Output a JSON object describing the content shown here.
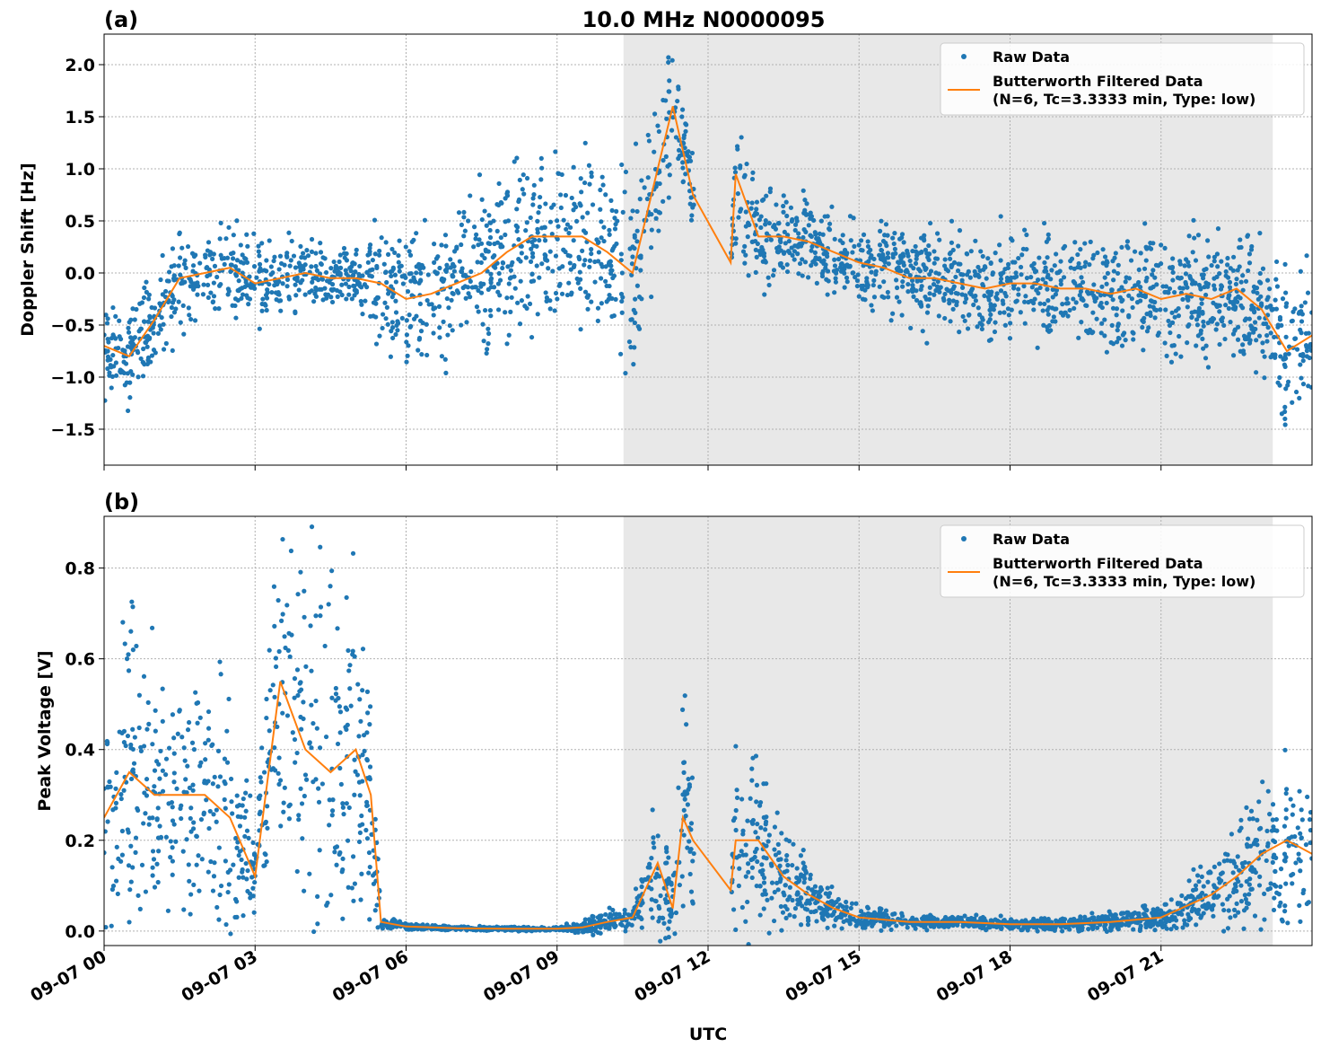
{
  "chart_data": [
    {
      "type": "scatter",
      "panel_label": "(a)",
      "title": "10.0 MHz N0000095",
      "xlabel": "",
      "ylabel": "Doppler Shift [Hz]",
      "xlim_hours": [
        0,
        24
      ],
      "ylim": [
        -1.845,
        2.293
      ],
      "yticks": [
        2.0,
        1.5,
        1.0,
        0.5,
        0.0,
        -0.5,
        -1.0,
        -1.5
      ],
      "ytick_labels": [
        "2.0",
        "1.5",
        "1.0",
        "0.5",
        "0.0",
        "−0.5",
        "−1.0",
        "−1.5"
      ],
      "grid": true,
      "shaded_region_hours": [
        10.32,
        23.22
      ],
      "legend": {
        "placement": "top-right",
        "entries": [
          "Raw Data",
          "Butterworth Filtered Data\n(N=6, Tc=3.3333 min, Type: low)"
        ]
      },
      "colors": {
        "raw": "#1f77b4",
        "filtered": "#ff7f0e",
        "shade": "#e8e8e8"
      },
      "x": [
        0,
        0.5,
        1,
        1.5,
        2,
        2.5,
        3,
        3.5,
        4,
        4.5,
        5,
        5.5,
        6,
        6.5,
        7,
        7.5,
        8,
        8.5,
        9,
        9.5,
        10,
        10.5,
        11,
        11.3,
        11.7,
        12.45,
        12.55,
        13,
        13.5,
        14,
        14.5,
        15,
        15.5,
        16,
        16.5,
        17,
        17.5,
        18,
        18.5,
        19,
        19.5,
        20,
        20.5,
        21,
        21.5,
        22,
        22.5,
        23,
        23.5,
        24
      ],
      "filtered": [
        -0.7,
        -0.8,
        -0.45,
        -0.05,
        0.0,
        0.05,
        -0.1,
        -0.05,
        0.0,
        -0.05,
        -0.05,
        -0.1,
        -0.25,
        -0.2,
        -0.1,
        0.0,
        0.2,
        0.35,
        0.35,
        0.35,
        0.2,
        0.0,
        1.0,
        1.6,
        0.75,
        0.1,
        0.95,
        0.35,
        0.35,
        0.3,
        0.2,
        0.1,
        0.05,
        -0.05,
        -0.05,
        -0.1,
        -0.15,
        -0.1,
        -0.1,
        -0.15,
        -0.15,
        -0.2,
        -0.15,
        -0.25,
        -0.2,
        -0.25,
        -0.15,
        -0.35,
        -0.75,
        -0.6
      ],
      "raw_spread": [
        0.3,
        0.3,
        0.4,
        0.35,
        0.3,
        0.3,
        0.35,
        0.3,
        0.2,
        0.2,
        0.2,
        0.5,
        0.5,
        0.5,
        0.5,
        0.55,
        0.6,
        0.6,
        0.6,
        0.65,
        0.6,
        0.8,
        0.6,
        0.45,
        0.3,
        0,
        0.5,
        0.35,
        0.3,
        0.3,
        0.3,
        0.3,
        0.3,
        0.35,
        0.35,
        0.35,
        0.35,
        0.4,
        0.4,
        0.4,
        0.4,
        0.4,
        0.4,
        0.45,
        0.45,
        0.45,
        0.45,
        0.5,
        0.6,
        0.5
      ]
    },
    {
      "type": "scatter",
      "panel_label": "(b)",
      "title": "",
      "xlabel": "UTC",
      "ylabel": "Peak Voltage [V]",
      "xlim_hours": [
        0,
        24
      ],
      "ylim": [
        -0.032,
        0.914
      ],
      "yticks": [
        0.0,
        0.2,
        0.4,
        0.6,
        0.8
      ],
      "ytick_labels": [
        "0.0",
        "0.2",
        "0.4",
        "0.6",
        "0.8"
      ],
      "xticks_hours": [
        0,
        3,
        6,
        9,
        12,
        15,
        18,
        21
      ],
      "xtick_labels": [
        "09-07 00",
        "09-07 03",
        "09-07 06",
        "09-07 09",
        "09-07 12",
        "09-07 15",
        "09-07 18",
        "09-07 21"
      ],
      "grid": true,
      "shaded_region_hours": [
        10.32,
        23.22
      ],
      "legend": {
        "placement": "top-right",
        "entries": [
          "Raw Data",
          "Butterworth Filtered Data\n(N=6, Tc=3.3333 min, Type: low)"
        ]
      },
      "x": [
        0,
        0.5,
        1,
        1.5,
        2,
        2.5,
        3,
        3.5,
        4,
        4.5,
        5,
        5.3,
        5.5,
        6,
        7,
        8,
        9,
        9.5,
        10,
        10.5,
        11,
        11.3,
        11.5,
        11.7,
        12.45,
        12.55,
        13,
        13.5,
        14,
        14.5,
        15,
        16,
        17,
        18,
        19,
        20,
        21,
        22,
        22.5,
        23,
        23.5,
        24
      ],
      "filtered": [
        0.25,
        0.35,
        0.3,
        0.3,
        0.3,
        0.25,
        0.12,
        0.55,
        0.4,
        0.35,
        0.4,
        0.3,
        0.02,
        0.01,
        0.006,
        0.005,
        0.005,
        0.008,
        0.02,
        0.03,
        0.15,
        0.05,
        0.25,
        0.2,
        0.09,
        0.2,
        0.2,
        0.12,
        0.08,
        0.05,
        0.03,
        0.02,
        0.02,
        0.015,
        0.015,
        0.02,
        0.03,
        0.08,
        0.12,
        0.17,
        0.2,
        0.17
      ],
      "raw_spread": [
        0.18,
        0.3,
        0.2,
        0.15,
        0.2,
        0.2,
        0.1,
        0.3,
        0.3,
        0.3,
        0.3,
        0.2,
        0.01,
        0.005,
        0.003,
        0.003,
        0.003,
        0.01,
        0.02,
        0.02,
        0.12,
        0.04,
        0.25,
        0.1,
        0,
        0.15,
        0.15,
        0.08,
        0.05,
        0.03,
        0.02,
        0.01,
        0.01,
        0.01,
        0.01,
        0.015,
        0.02,
        0.06,
        0.1,
        0.12,
        0.15,
        0.12
      ]
    }
  ]
}
